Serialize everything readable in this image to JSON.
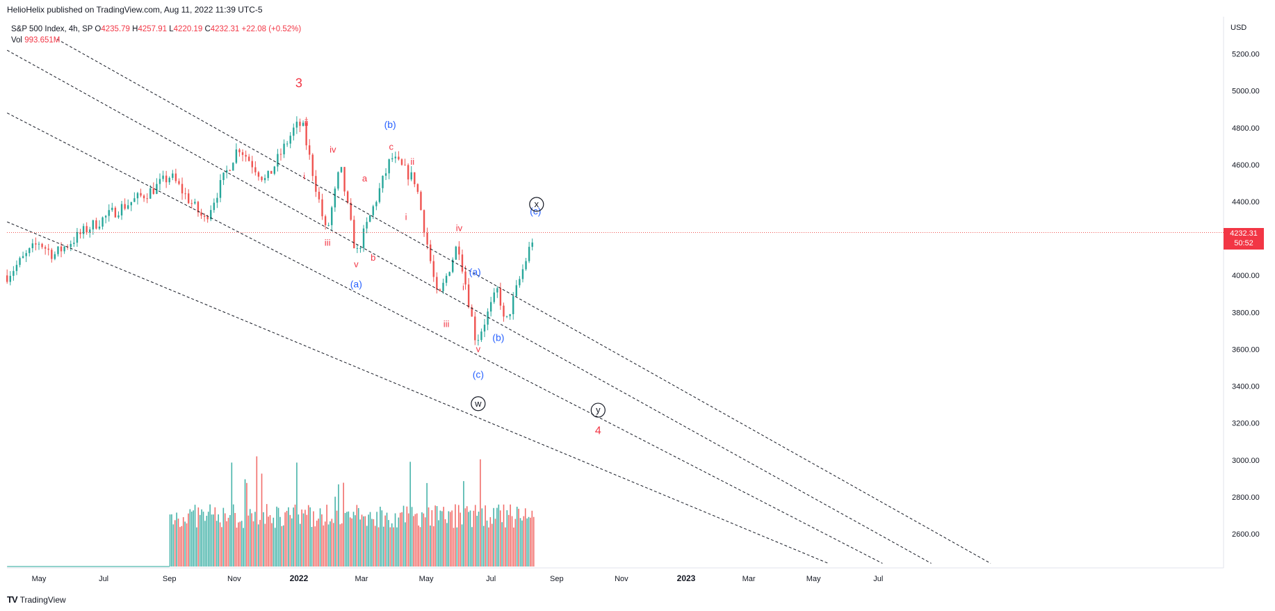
{
  "header": {
    "publish_text": "HelioHelix published on TradingView.com, Aug 11, 2022 11:39 UTC-5"
  },
  "legend": {
    "symbol": "S&P 500 Index, 4h, SP",
    "o_label": "O",
    "o_value": "4235.79",
    "h_label": "H",
    "h_value": "4257.91",
    "l_label": "L",
    "l_value": "4220.19",
    "c_label": "C",
    "c_value": "4232.31",
    "change": "+22.08 (+0.52%)",
    "vol_label": "Vol",
    "vol_value": "993.651M"
  },
  "price_axis": {
    "currency": "USD",
    "last_price": "4232.31",
    "countdown": "50:52"
  },
  "footer": {
    "logo": "TV",
    "brand": "TradingView"
  },
  "colors": {
    "up": "#26a69a",
    "down": "#ef5350",
    "wave_red": "#f23645",
    "wave_blue": "#2962ff",
    "dash": "#131722"
  },
  "chart_data": {
    "type": "candlestick",
    "y_ticks": [
      5200,
      5000,
      4800,
      4600,
      4400,
      4000,
      3800,
      3600,
      3400,
      3200,
      3000,
      2800,
      2600
    ],
    "y_tick_labels": [
      "5200.00",
      "5000.00",
      "4800.00",
      "4600.00",
      "4400.00",
      "4000.00",
      "3800.00",
      "3600.00",
      "3400.00",
      "3200.00",
      "3000.00",
      "2800.00",
      "2600.00"
    ],
    "x_ticks": [
      "May",
      "Jul",
      "Sep",
      "Nov",
      "2022",
      "Mar",
      "May",
      "Jul",
      "Sep",
      "Nov",
      "2023",
      "Mar",
      "May",
      "Jul"
    ],
    "x_tick_dates": [
      "2021-05-01",
      "2021-07-01",
      "2021-09-01",
      "2021-11-01",
      "2022-01-01",
      "2022-03-01",
      "2022-05-01",
      "2022-07-01",
      "2022-09-01",
      "2022-11-01",
      "2023-01-01",
      "2023-03-01",
      "2023-05-01",
      "2023-07-01"
    ],
    "bold_ticks": [
      "2022",
      "2023"
    ],
    "last_price": 4232.31,
    "price_path": [
      [
        "2021-04-01",
        4000
      ],
      [
        "2021-05-01",
        4180
      ],
      [
        "2021-05-15",
        4110
      ],
      [
        "2021-06-15",
        4250
      ],
      [
        "2021-07-15",
        4360
      ],
      [
        "2021-08-15",
        4460
      ],
      [
        "2021-09-02",
        4540
      ],
      [
        "2021-10-04",
        4300
      ],
      [
        "2021-11-05",
        4700
      ],
      [
        "2021-12-01",
        4510
      ],
      [
        "2021-12-28",
        4800
      ],
      [
        "2022-01-04",
        4820
      ],
      [
        "2022-01-27",
        4220
      ],
      [
        "2022-02-09",
        4590
      ],
      [
        "2022-02-24",
        4110
      ],
      [
        "2022-03-29",
        4640
      ],
      [
        "2022-04-21",
        4510
      ],
      [
        "2022-05-12",
        3860
      ],
      [
        "2022-05-31",
        4180
      ],
      [
        "2022-06-17",
        3640
      ],
      [
        "2022-07-08",
        3930
      ],
      [
        "2022-07-14",
        3720
      ],
      [
        "2022-08-11",
        4232
      ]
    ],
    "volume_note": "volume bars shown from Sep 2021 to Aug 2022",
    "trend_lines": [
      {
        "from": [
          "2021-04-01",
          5220
        ],
        "to": [
          "2023-08-20",
          2440
        ]
      },
      {
        "from": [
          "2021-04-01",
          4880
        ],
        "to": [
          "2023-07-05",
          2440
        ]
      },
      {
        "from": [
          "2021-04-01",
          4290
        ],
        "to": [
          "2023-05-15",
          2440
        ]
      },
      {
        "from": [
          "2021-05-18",
          5280
        ],
        "to": [
          "2023-10-15",
          2440
        ]
      }
    ],
    "wave_labels": [
      {
        "text": "3",
        "date": "2022-01-01",
        "price": 5020,
        "color": "red",
        "size": 18
      },
      {
        "text": "ii",
        "date": "2022-01-08",
        "price": 4810,
        "color": "red",
        "size": 13
      },
      {
        "text": "i",
        "date": "2022-01-06",
        "price": 4520,
        "color": "red",
        "size": 13
      },
      {
        "text": "iv",
        "date": "2022-02-02",
        "price": 4665,
        "color": "red",
        "size": 13
      },
      {
        "text": "iii",
        "date": "2022-01-28",
        "price": 4160,
        "color": "red",
        "size": 13
      },
      {
        "text": "a",
        "date": "2022-03-04",
        "price": 4510,
        "color": "red",
        "size": 13
      },
      {
        "text": "v",
        "date": "2022-02-24",
        "price": 4045,
        "color": "red",
        "size": 13
      },
      {
        "text": "b",
        "date": "2022-03-12",
        "price": 4080,
        "color": "red",
        "size": 13
      },
      {
        "text": "(a)",
        "date": "2022-02-24",
        "price": 3935,
        "color": "blue",
        "size": 14
      },
      {
        "text": "(b)",
        "date": "2022-03-28",
        "price": 4800,
        "color": "blue",
        "size": 14
      },
      {
        "text": "c",
        "date": "2022-03-29",
        "price": 4680,
        "color": "red",
        "size": 13
      },
      {
        "text": "ii",
        "date": "2022-04-18",
        "price": 4600,
        "color": "red",
        "size": 13
      },
      {
        "text": "i",
        "date": "2022-04-12",
        "price": 4300,
        "color": "red",
        "size": 13
      },
      {
        "text": "iv",
        "date": "2022-06-01",
        "price": 4240,
        "color": "red",
        "size": 13
      },
      {
        "text": "i",
        "date": "2022-06-05",
        "price": 3920,
        "color": "red",
        "size": 13
      },
      {
        "text": "iii",
        "date": "2022-05-20",
        "price": 3720,
        "color": "red",
        "size": 13
      },
      {
        "text": "(a)",
        "date": "2022-06-16",
        "price": 4000,
        "color": "blue",
        "size": 14
      },
      {
        "text": "v",
        "date": "2022-06-19",
        "price": 3585,
        "color": "red",
        "size": 13
      },
      {
        "text": "(b)",
        "date": "2022-07-08",
        "price": 3645,
        "color": "blue",
        "size": 14
      },
      {
        "text": "(c)",
        "date": "2022-06-19",
        "price": 3445,
        "color": "blue",
        "size": 14
      },
      {
        "text": "(c)",
        "date": "2022-08-12",
        "price": 4330,
        "color": "blue",
        "size": 14
      },
      {
        "text": "4",
        "date": "2022-10-10",
        "price": 3140,
        "color": "red",
        "size": 16
      }
    ],
    "circled_labels": [
      {
        "text": "w",
        "date": "2022-06-19",
        "price": 3305
      },
      {
        "text": "x",
        "date": "2022-08-13",
        "price": 4385
      },
      {
        "text": "y",
        "date": "2022-10-10",
        "price": 3270
      }
    ]
  }
}
